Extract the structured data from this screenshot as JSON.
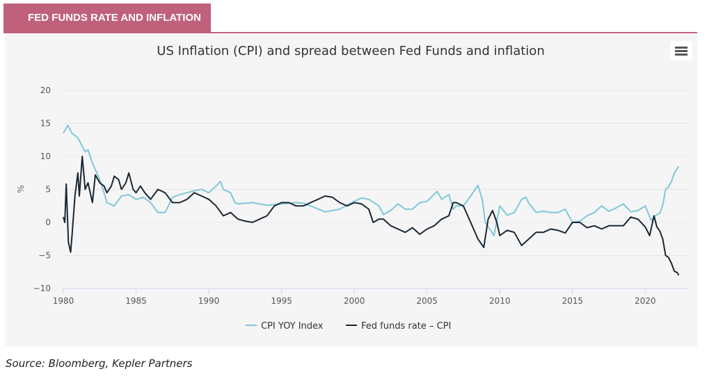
{
  "header": {
    "banner": "FED FUNDS RATE AND INFLATION"
  },
  "footer": {
    "source": "Source: Bloomberg, Kepler Partners"
  },
  "menu": {
    "icon": "hamburger-menu-icon"
  },
  "colors": {
    "banner": "#c0617c",
    "cpi": "#7ec8d8",
    "spread": "#1b2733",
    "panel": "#f5f5f5"
  },
  "chart_data": {
    "type": "line",
    "title": "US Inflation (CPI) and spread between Fed Funds and inflation",
    "ylabel": "%",
    "xlabel": "",
    "xlim": [
      1980,
      2023
    ],
    "ylim": [
      -10,
      20
    ],
    "xticks": [
      "1980",
      "1985",
      "1990",
      "1995",
      "2000",
      "2005",
      "2010",
      "2015",
      "2020"
    ],
    "yticks": [
      "20",
      "15",
      "10",
      "5",
      "0",
      "−5",
      "−10"
    ],
    "grid": true,
    "legend": "bottom-center",
    "series": [
      {
        "name": "CPI YOY Index",
        "points": [
          [
            1980.0,
            13.5
          ],
          [
            1980.3,
            14.7
          ],
          [
            1980.6,
            13.5
          ],
          [
            1981.0,
            12.8
          ],
          [
            1981.5,
            10.7
          ],
          [
            1981.7,
            11.0
          ],
          [
            1982.0,
            9.0
          ],
          [
            1982.5,
            6.5
          ],
          [
            1982.8,
            4.5
          ],
          [
            1983.0,
            3.0
          ],
          [
            1983.5,
            2.5
          ],
          [
            1984.0,
            4.0
          ],
          [
            1984.5,
            4.2
          ],
          [
            1985.0,
            3.5
          ],
          [
            1985.5,
            3.8
          ],
          [
            1986.0,
            3.0
          ],
          [
            1986.5,
            1.5
          ],
          [
            1987.0,
            1.5
          ],
          [
            1987.5,
            3.8
          ],
          [
            1988.0,
            4.2
          ],
          [
            1988.5,
            4.5
          ],
          [
            1989.0,
            4.8
          ],
          [
            1989.5,
            5.0
          ],
          [
            1990.0,
            4.5
          ],
          [
            1990.5,
            5.5
          ],
          [
            1990.8,
            6.2
          ],
          [
            1991.0,
            5.0
          ],
          [
            1991.5,
            4.5
          ],
          [
            1991.8,
            3.0
          ],
          [
            1992.0,
            2.8
          ],
          [
            1993.0,
            3.0
          ],
          [
            1994.0,
            2.6
          ],
          [
            1995.0,
            2.8
          ],
          [
            1996.0,
            3.0
          ],
          [
            1996.5,
            2.9
          ],
          [
            1997.0,
            2.5
          ],
          [
            1998.0,
            1.6
          ],
          [
            1999.0,
            2.0
          ],
          [
            2000.0,
            3.2
          ],
          [
            2000.5,
            3.7
          ],
          [
            2001.0,
            3.5
          ],
          [
            2001.7,
            2.5
          ],
          [
            2002.0,
            1.2
          ],
          [
            2002.5,
            1.8
          ],
          [
            2003.0,
            2.8
          ],
          [
            2003.5,
            2.0
          ],
          [
            2004.0,
            2.0
          ],
          [
            2004.5,
            3.0
          ],
          [
            2005.0,
            3.2
          ],
          [
            2005.7,
            4.7
          ],
          [
            2006.0,
            3.5
          ],
          [
            2006.5,
            4.2
          ],
          [
            2006.8,
            2.0
          ],
          [
            2007.0,
            2.5
          ],
          [
            2007.5,
            2.5
          ],
          [
            2008.0,
            4.0
          ],
          [
            2008.5,
            5.6
          ],
          [
            2008.8,
            3.5
          ],
          [
            2009.0,
            0.0
          ],
          [
            2009.3,
            -1.0
          ],
          [
            2009.6,
            -2.0
          ],
          [
            2010.0,
            2.5
          ],
          [
            2010.5,
            1.1
          ],
          [
            2011.0,
            1.5
          ],
          [
            2011.5,
            3.5
          ],
          [
            2011.8,
            3.8
          ],
          [
            2012.0,
            2.9
          ],
          [
            2012.5,
            1.5
          ],
          [
            2013.0,
            1.7
          ],
          [
            2013.5,
            1.5
          ],
          [
            2014.0,
            1.5
          ],
          [
            2014.5,
            2.0
          ],
          [
            2015.0,
            0.0
          ],
          [
            2015.5,
            0.2
          ],
          [
            2016.0,
            1.0
          ],
          [
            2016.5,
            1.5
          ],
          [
            2017.0,
            2.5
          ],
          [
            2017.5,
            1.7
          ],
          [
            2018.0,
            2.2
          ],
          [
            2018.5,
            2.8
          ],
          [
            2019.0,
            1.6
          ],
          [
            2019.5,
            1.8
          ],
          [
            2020.0,
            2.5
          ],
          [
            2020.4,
            0.3
          ],
          [
            2020.8,
            1.2
          ],
          [
            2021.0,
            1.4
          ],
          [
            2021.2,
            2.6
          ],
          [
            2021.4,
            5.0
          ],
          [
            2021.6,
            5.4
          ],
          [
            2021.8,
            6.2
          ],
          [
            2022.0,
            7.5
          ],
          [
            2022.3,
            8.5
          ]
        ]
      },
      {
        "name": "Fed funds rate – CPI",
        "points": [
          [
            1980.0,
            0.8
          ],
          [
            1980.1,
            0.0
          ],
          [
            1980.2,
            5.8
          ],
          [
            1980.35,
            -3.0
          ],
          [
            1980.5,
            -4.5
          ],
          [
            1980.6,
            -2.0
          ],
          [
            1980.8,
            4.0
          ],
          [
            1981.0,
            7.5
          ],
          [
            1981.1,
            4.0
          ],
          [
            1981.3,
            10.0
          ],
          [
            1981.5,
            5.0
          ],
          [
            1981.7,
            6.0
          ],
          [
            1982.0,
            3.0
          ],
          [
            1982.2,
            7.2
          ],
          [
            1982.5,
            6.0
          ],
          [
            1982.8,
            5.5
          ],
          [
            1983.0,
            4.5
          ],
          [
            1983.3,
            5.5
          ],
          [
            1983.5,
            7.0
          ],
          [
            1983.8,
            6.5
          ],
          [
            1984.0,
            5.0
          ],
          [
            1984.3,
            6.0
          ],
          [
            1984.5,
            7.5
          ],
          [
            1984.8,
            5.0
          ],
          [
            1985.0,
            4.5
          ],
          [
            1985.3,
            5.5
          ],
          [
            1985.6,
            4.5
          ],
          [
            1986.0,
            3.5
          ],
          [
            1986.5,
            5.0
          ],
          [
            1987.0,
            4.5
          ],
          [
            1987.5,
            3.0
          ],
          [
            1988.0,
            3.0
          ],
          [
            1988.5,
            3.5
          ],
          [
            1989.0,
            4.5
          ],
          [
            1989.5,
            4.0
          ],
          [
            1990.0,
            3.5
          ],
          [
            1990.5,
            2.5
          ],
          [
            1991.0,
            1.0
          ],
          [
            1991.5,
            1.5
          ],
          [
            1992.0,
            0.5
          ],
          [
            1992.5,
            0.2
          ],
          [
            1993.0,
            0.0
          ],
          [
            1994.0,
            1.0
          ],
          [
            1994.5,
            2.5
          ],
          [
            1995.0,
            3.0
          ],
          [
            1995.5,
            3.0
          ],
          [
            1996.0,
            2.5
          ],
          [
            1996.5,
            2.5
          ],
          [
            1997.0,
            3.0
          ],
          [
            1997.5,
            3.5
          ],
          [
            1998.0,
            4.0
          ],
          [
            1998.5,
            3.8
          ],
          [
            1999.0,
            3.0
          ],
          [
            1999.5,
            2.5
          ],
          [
            2000.0,
            3.0
          ],
          [
            2000.5,
            2.8
          ],
          [
            2001.0,
            2.0
          ],
          [
            2001.3,
            0.0
          ],
          [
            2001.7,
            0.5
          ],
          [
            2002.0,
            0.5
          ],
          [
            2002.5,
            -0.5
          ],
          [
            2003.0,
            -1.0
          ],
          [
            2003.5,
            -1.5
          ],
          [
            2004.0,
            -0.8
          ],
          [
            2004.5,
            -1.8
          ],
          [
            2005.0,
            -1.0
          ],
          [
            2005.5,
            -0.5
          ],
          [
            2006.0,
            0.5
          ],
          [
            2006.5,
            1.0
          ],
          [
            2006.8,
            3.0
          ],
          [
            2007.0,
            3.0
          ],
          [
            2007.5,
            2.5
          ],
          [
            2008.0,
            0.0
          ],
          [
            2008.5,
            -2.5
          ],
          [
            2008.9,
            -3.8
          ],
          [
            2009.2,
            0.5
          ],
          [
            2009.5,
            1.8
          ],
          [
            2009.8,
            0.0
          ],
          [
            2010.0,
            -2.0
          ],
          [
            2010.5,
            -1.2
          ],
          [
            2011.0,
            -1.5
          ],
          [
            2011.5,
            -3.5
          ],
          [
            2012.0,
            -2.5
          ],
          [
            2012.5,
            -1.5
          ],
          [
            2013.0,
            -1.5
          ],
          [
            2013.5,
            -1.0
          ],
          [
            2014.0,
            -1.2
          ],
          [
            2014.5,
            -1.6
          ],
          [
            2015.0,
            0.0
          ],
          [
            2015.5,
            0.0
          ],
          [
            2016.0,
            -0.8
          ],
          [
            2016.5,
            -0.5
          ],
          [
            2017.0,
            -1.0
          ],
          [
            2017.5,
            -0.5
          ],
          [
            2018.0,
            -0.5
          ],
          [
            2018.5,
            -0.5
          ],
          [
            2019.0,
            0.8
          ],
          [
            2019.5,
            0.5
          ],
          [
            2020.0,
            -0.7
          ],
          [
            2020.3,
            -2.0
          ],
          [
            2020.6,
            1.0
          ],
          [
            2020.8,
            -0.7
          ],
          [
            2021.0,
            -1.3
          ],
          [
            2021.2,
            -2.5
          ],
          [
            2021.4,
            -5.0
          ],
          [
            2021.6,
            -5.3
          ],
          [
            2021.8,
            -6.2
          ],
          [
            2022.0,
            -7.4
          ],
          [
            2022.2,
            -7.6
          ],
          [
            2022.3,
            -8.0
          ]
        ]
      }
    ]
  }
}
